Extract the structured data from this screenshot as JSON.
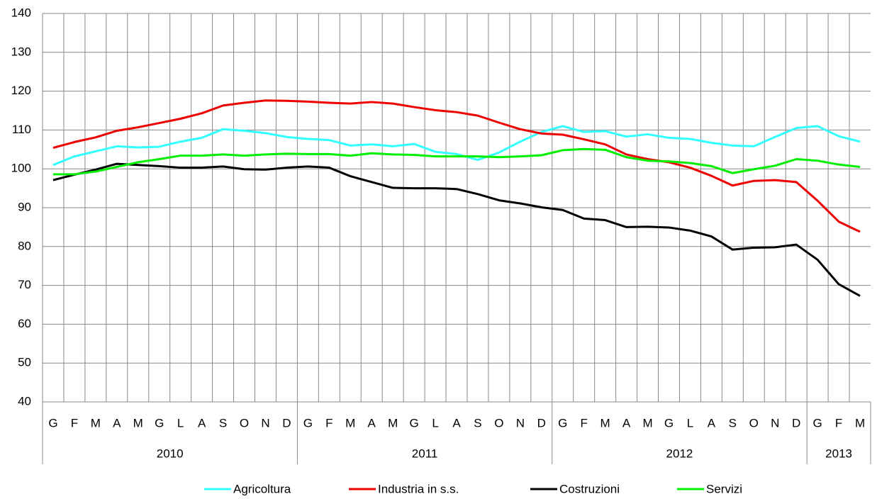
{
  "chart_data": {
    "type": "line",
    "category_groups": [
      {
        "name": "2010",
        "categories": [
          "G",
          "F",
          "M",
          "A",
          "M",
          "G",
          "L",
          "A",
          "S",
          "O",
          "N",
          "D"
        ]
      },
      {
        "name": "2011",
        "categories": [
          "G",
          "F",
          "M",
          "A",
          "M",
          "G",
          "L",
          "A",
          "S",
          "O",
          "N",
          "D"
        ]
      },
      {
        "name": "2012",
        "categories": [
          "G",
          "F",
          "M",
          "A",
          "M",
          "G",
          "L",
          "A",
          "S",
          "O",
          "N",
          "D"
        ]
      },
      {
        "name": "2013",
        "categories": [
          "G",
          "F",
          "M"
        ]
      }
    ],
    "series": [
      {
        "name": "Agricoltura",
        "color": "#33ffff",
        "values": [
          101,
          103.2,
          104.5,
          105.8,
          105.5,
          105.7,
          107,
          108,
          110.2,
          109.8,
          109.2,
          108.2,
          107.7,
          107.4,
          106,
          106.3,
          105.8,
          106.4,
          104.4,
          103.8,
          102.3,
          104.2,
          107,
          109.5,
          111,
          109.5,
          109.7,
          108.3,
          108.9,
          108,
          107.7,
          106.7,
          106,
          105.8,
          108.2,
          110.5,
          111,
          108.4,
          107
        ]
      },
      {
        "name": "Industria in s.s.",
        "color": "#ee0000",
        "values": [
          105.4,
          106.9,
          108.1,
          109.8,
          110.7,
          111.8,
          112.9,
          114.3,
          116.3,
          117,
          117.6,
          117.5,
          117.3,
          117,
          116.8,
          117.2,
          116.8,
          115.9,
          115.1,
          114.6,
          113.7,
          111.9,
          110.2,
          109.1,
          108.8,
          107.6,
          106.3,
          103.7,
          102.5,
          101.7,
          100.3,
          98.2,
          95.7,
          96.9,
          97.1,
          96.6,
          91.8,
          86.4,
          83.8
        ]
      },
      {
        "name": "Costruzioni",
        "color": "#000000",
        "values": [
          97.1,
          98.5,
          99.8,
          101.3,
          101,
          100.7,
          100.3,
          100.3,
          100.6,
          99.9,
          99.8,
          100.3,
          100.6,
          100.3,
          98.1,
          96.6,
          95.1,
          95,
          95,
          94.8,
          93.5,
          91.9,
          91.1,
          90.1,
          89.4,
          87.2,
          86.8,
          85,
          85.1,
          84.9,
          84.1,
          82.6,
          79.2,
          79.7,
          79.8,
          80.5,
          76.6,
          70.3,
          67.3
        ]
      },
      {
        "name": "Servizi",
        "color": "#00ee00",
        "values": [
          98.6,
          98.6,
          99.3,
          100.5,
          101.7,
          102.5,
          103.4,
          103.4,
          103.7,
          103.4,
          103.7,
          103.9,
          103.8,
          103.8,
          103.4,
          104,
          103.7,
          103.6,
          103.2,
          103.2,
          103.2,
          103,
          103.2,
          103.5,
          104.8,
          105.1,
          104.9,
          103,
          102.1,
          101.9,
          101.5,
          100.7,
          98.9,
          99.9,
          100.8,
          102.5,
          102.1,
          101.1,
          100.5
        ]
      }
    ],
    "ylim": [
      40,
      140
    ],
    "yticks": [
      40,
      50,
      60,
      70,
      80,
      90,
      100,
      110,
      120,
      130,
      140
    ],
    "grid": true,
    "legend": "bottom"
  }
}
